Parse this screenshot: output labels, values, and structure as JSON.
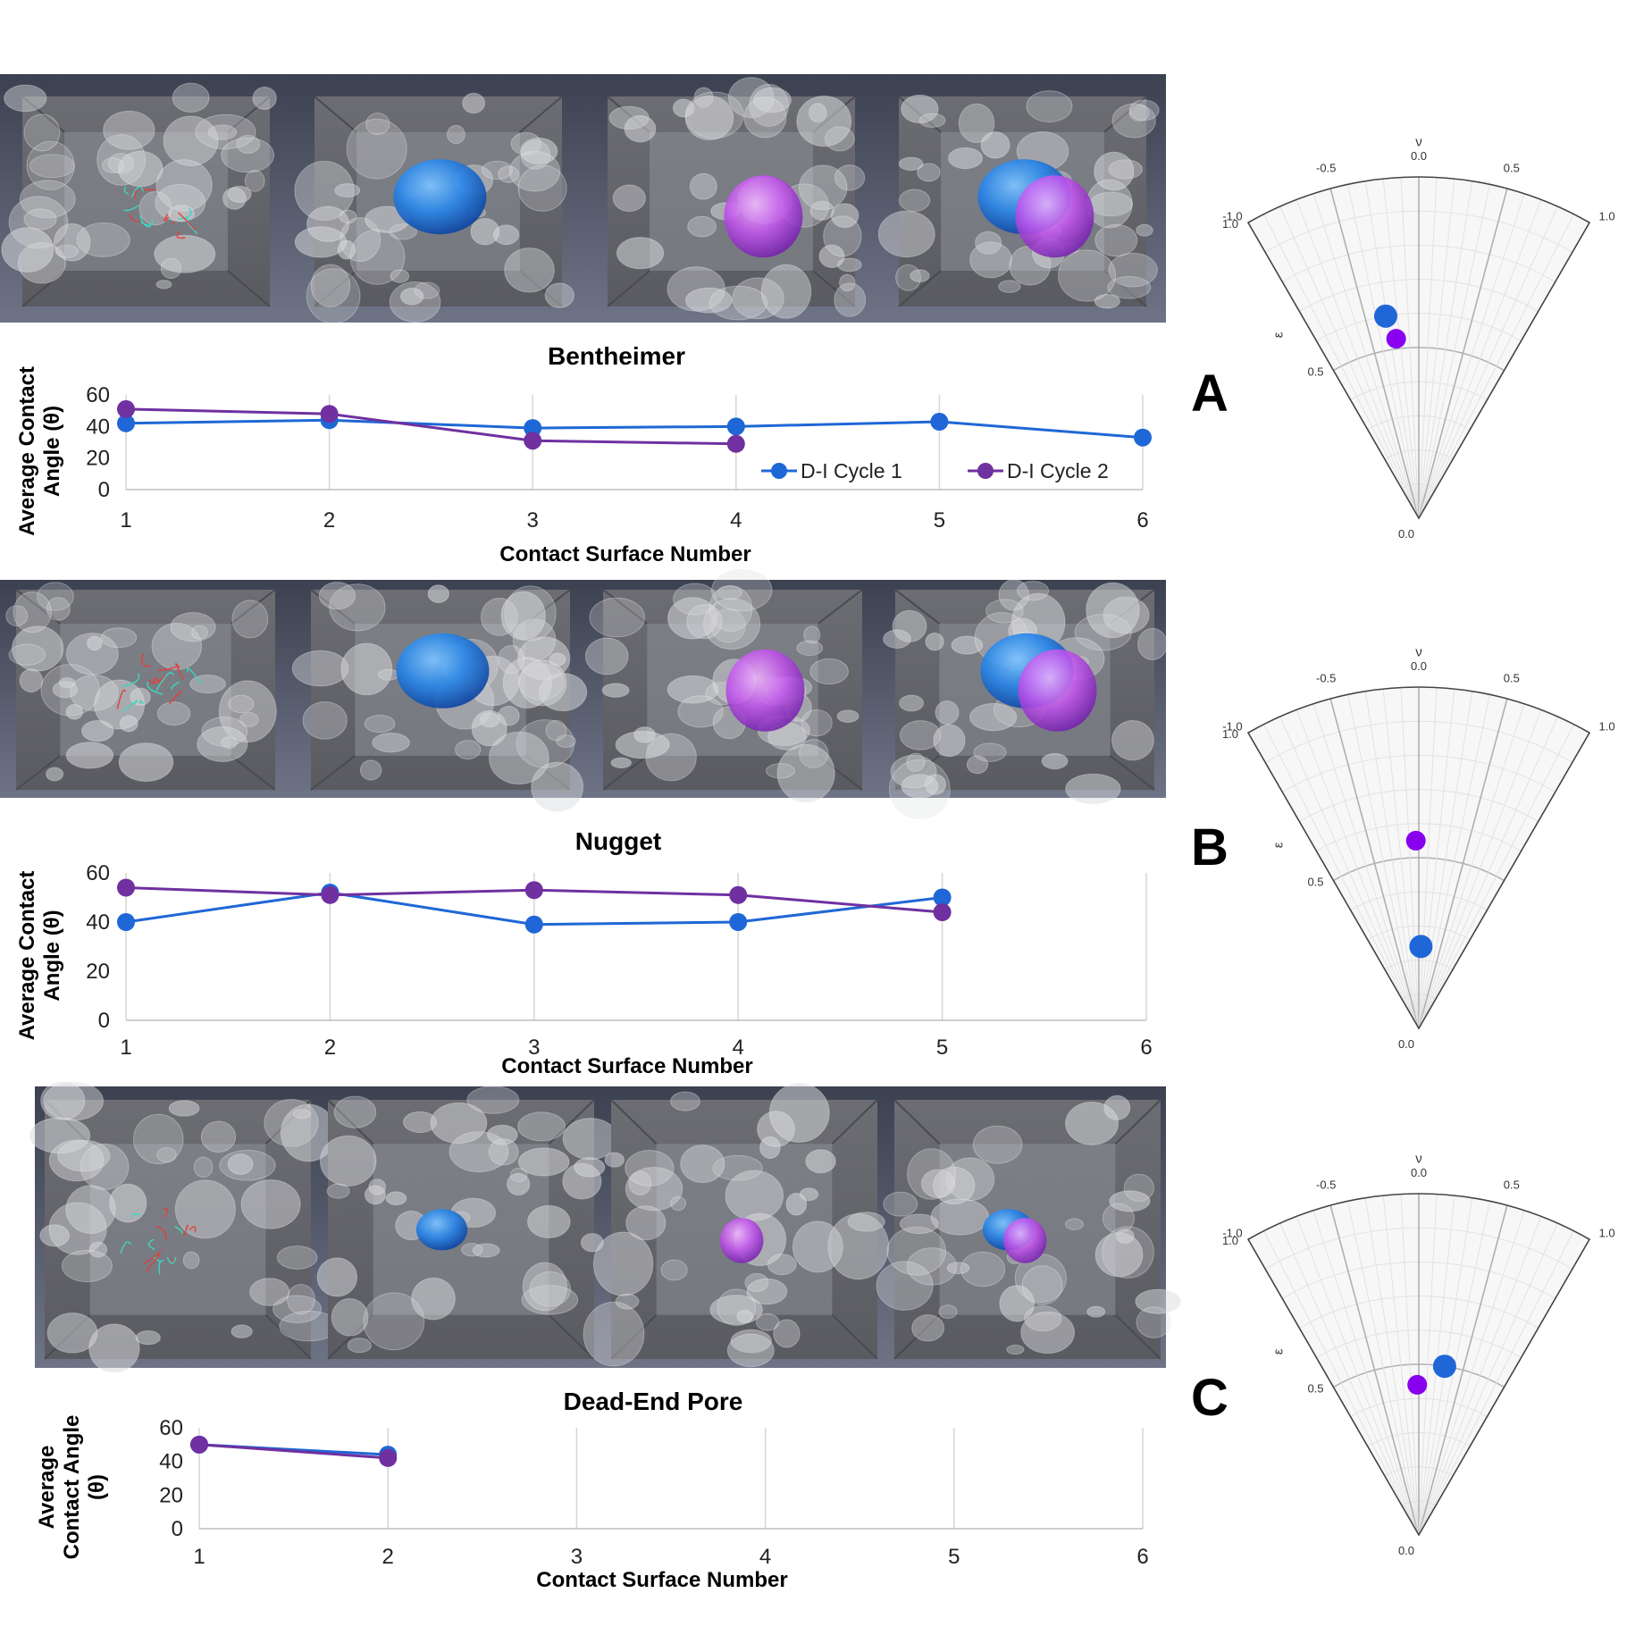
{
  "colors": {
    "cycle1": "#1f67d6",
    "cycle2": "#7030a0",
    "fan_cycle1": "#1f67d6",
    "fan_cycle2": "#8800ee",
    "grid": "#d6d6d6",
    "axis": "#555555"
  },
  "panels": [
    {
      "letter": "A",
      "image_alt": "3D pore renderings - Bentheimer",
      "images": [
        {
          "fluid": "none"
        },
        {
          "fluid": "blue"
        },
        {
          "fluid": "purple"
        },
        {
          "fluid": "both"
        }
      ]
    },
    {
      "letter": "B",
      "image_alt": "3D pore renderings - Nugget",
      "images": [
        {
          "fluid": "none"
        },
        {
          "fluid": "blue"
        },
        {
          "fluid": "purple"
        },
        {
          "fluid": "both"
        }
      ]
    },
    {
      "letter": "C",
      "image_alt": "3D pore renderings - Dead-End Pore",
      "images": [
        {
          "fluid": "none"
        },
        {
          "fluid": "blue"
        },
        {
          "fluid": "purple"
        },
        {
          "fluid": "both"
        }
      ]
    }
  ],
  "chart_data": [
    {
      "type": "line",
      "title": "Bentheimer",
      "xlabel": "Contact Surface Number",
      "ylabel": "Average Contact Angle (θ)",
      "ylabel_lines": [
        "Average Contact",
        "Angle (θ)"
      ],
      "x": [
        1,
        2,
        3,
        4,
        5,
        6
      ],
      "xlim": [
        1,
        6
      ],
      "ylim": [
        0,
        60
      ],
      "yticks": [
        0,
        20,
        40,
        60
      ],
      "legend": "bottom-right",
      "series": [
        {
          "name": "D-I Cycle 1",
          "x": [
            1,
            2,
            3,
            4,
            5,
            6
          ],
          "values": [
            42,
            44,
            39,
            40,
            43,
            33
          ]
        },
        {
          "name": "D-I Cycle 2",
          "x": [
            1,
            2,
            3,
            4
          ],
          "values": [
            51,
            48,
            31,
            29
          ]
        }
      ]
    },
    {
      "type": "line",
      "title": "Nugget",
      "xlabel": "Contact Surface Number",
      "ylabel": "Average Contact Angle (θ)",
      "ylabel_lines": [
        "Average Contact",
        "Angle (θ)"
      ],
      "x": [
        1,
        2,
        3,
        4,
        5,
        6
      ],
      "xlim": [
        1,
        6
      ],
      "ylim": [
        0,
        60
      ],
      "yticks": [
        0,
        20,
        40,
        60
      ],
      "series": [
        {
          "x": [
            1,
            2,
            3,
            4,
            5
          ],
          "values": [
            40,
            52,
            39,
            40,
            50
          ]
        },
        {
          "x": [
            1,
            2,
            3,
            4,
            5
          ],
          "values": [
            54,
            51,
            53,
            51,
            44
          ]
        }
      ]
    },
    {
      "type": "line",
      "title": "Dead-End Pore",
      "xlabel": "Contact Surface Number",
      "ylabel": "Average Contact Angle (θ)",
      "ylabel_lines": [
        "Average",
        "Contact Angle",
        "(θ)"
      ],
      "x": [
        1,
        2,
        3,
        4,
        5,
        6
      ],
      "xlim": [
        1,
        6
      ],
      "ylim": [
        0,
        60
      ],
      "yticks": [
        0,
        20,
        40,
        60
      ],
      "series": [
        {
          "x": [
            1,
            2
          ],
          "values": [
            50,
            44
          ]
        },
        {
          "x": [
            1,
            2
          ],
          "values": [
            50,
            42
          ]
        }
      ]
    },
    {
      "type": "scatter",
      "projection": "polar-sector",
      "angular_label": "ν",
      "radial_label": "ε",
      "angular_ticks": [
        "-1.0",
        "-0.5",
        "0.0",
        "0.5",
        "1.0"
      ],
      "radial_ticks": [
        "0.0",
        "0.5",
        "1.0"
      ],
      "angular_range": [
        -1.0,
        1.0
      ],
      "radial_range": [
        0.0,
        1.0
      ],
      "points": [
        {
          "series": "cycle1",
          "nu": -0.31,
          "eps": 0.6
        },
        {
          "series": "cycle2",
          "nu": -0.24,
          "eps": 0.53
        }
      ]
    },
    {
      "type": "scatter",
      "projection": "polar-sector",
      "angular_label": "ν",
      "radial_label": "ε",
      "angular_ticks": [
        "-1.0",
        "-0.5",
        "0.0",
        "0.5",
        "1.0"
      ],
      "radial_ticks": [
        "0.0",
        "0.5",
        "1.0"
      ],
      "angular_range": [
        -1.0,
        1.0
      ],
      "radial_range": [
        0.0,
        1.0
      ],
      "points": [
        {
          "series": "cycle2",
          "nu": -0.03,
          "eps": 0.55
        },
        {
          "series": "cycle1",
          "nu": 0.05,
          "eps": 0.24
        }
      ]
    },
    {
      "type": "scatter",
      "projection": "polar-sector",
      "angular_label": "ν",
      "radial_label": "ε",
      "angular_ticks": [
        "-1.0",
        "-0.5",
        "0.0",
        "0.5",
        "1.0"
      ],
      "radial_ticks": [
        "0.0",
        "0.5",
        "1.0"
      ],
      "angular_range": [
        -1.0,
        1.0
      ],
      "radial_range": [
        0.0,
        1.0
      ],
      "points": [
        {
          "series": "cycle2",
          "nu": -0.02,
          "eps": 0.44
        },
        {
          "series": "cycle1",
          "nu": 0.29,
          "eps": 0.5
        }
      ]
    }
  ]
}
